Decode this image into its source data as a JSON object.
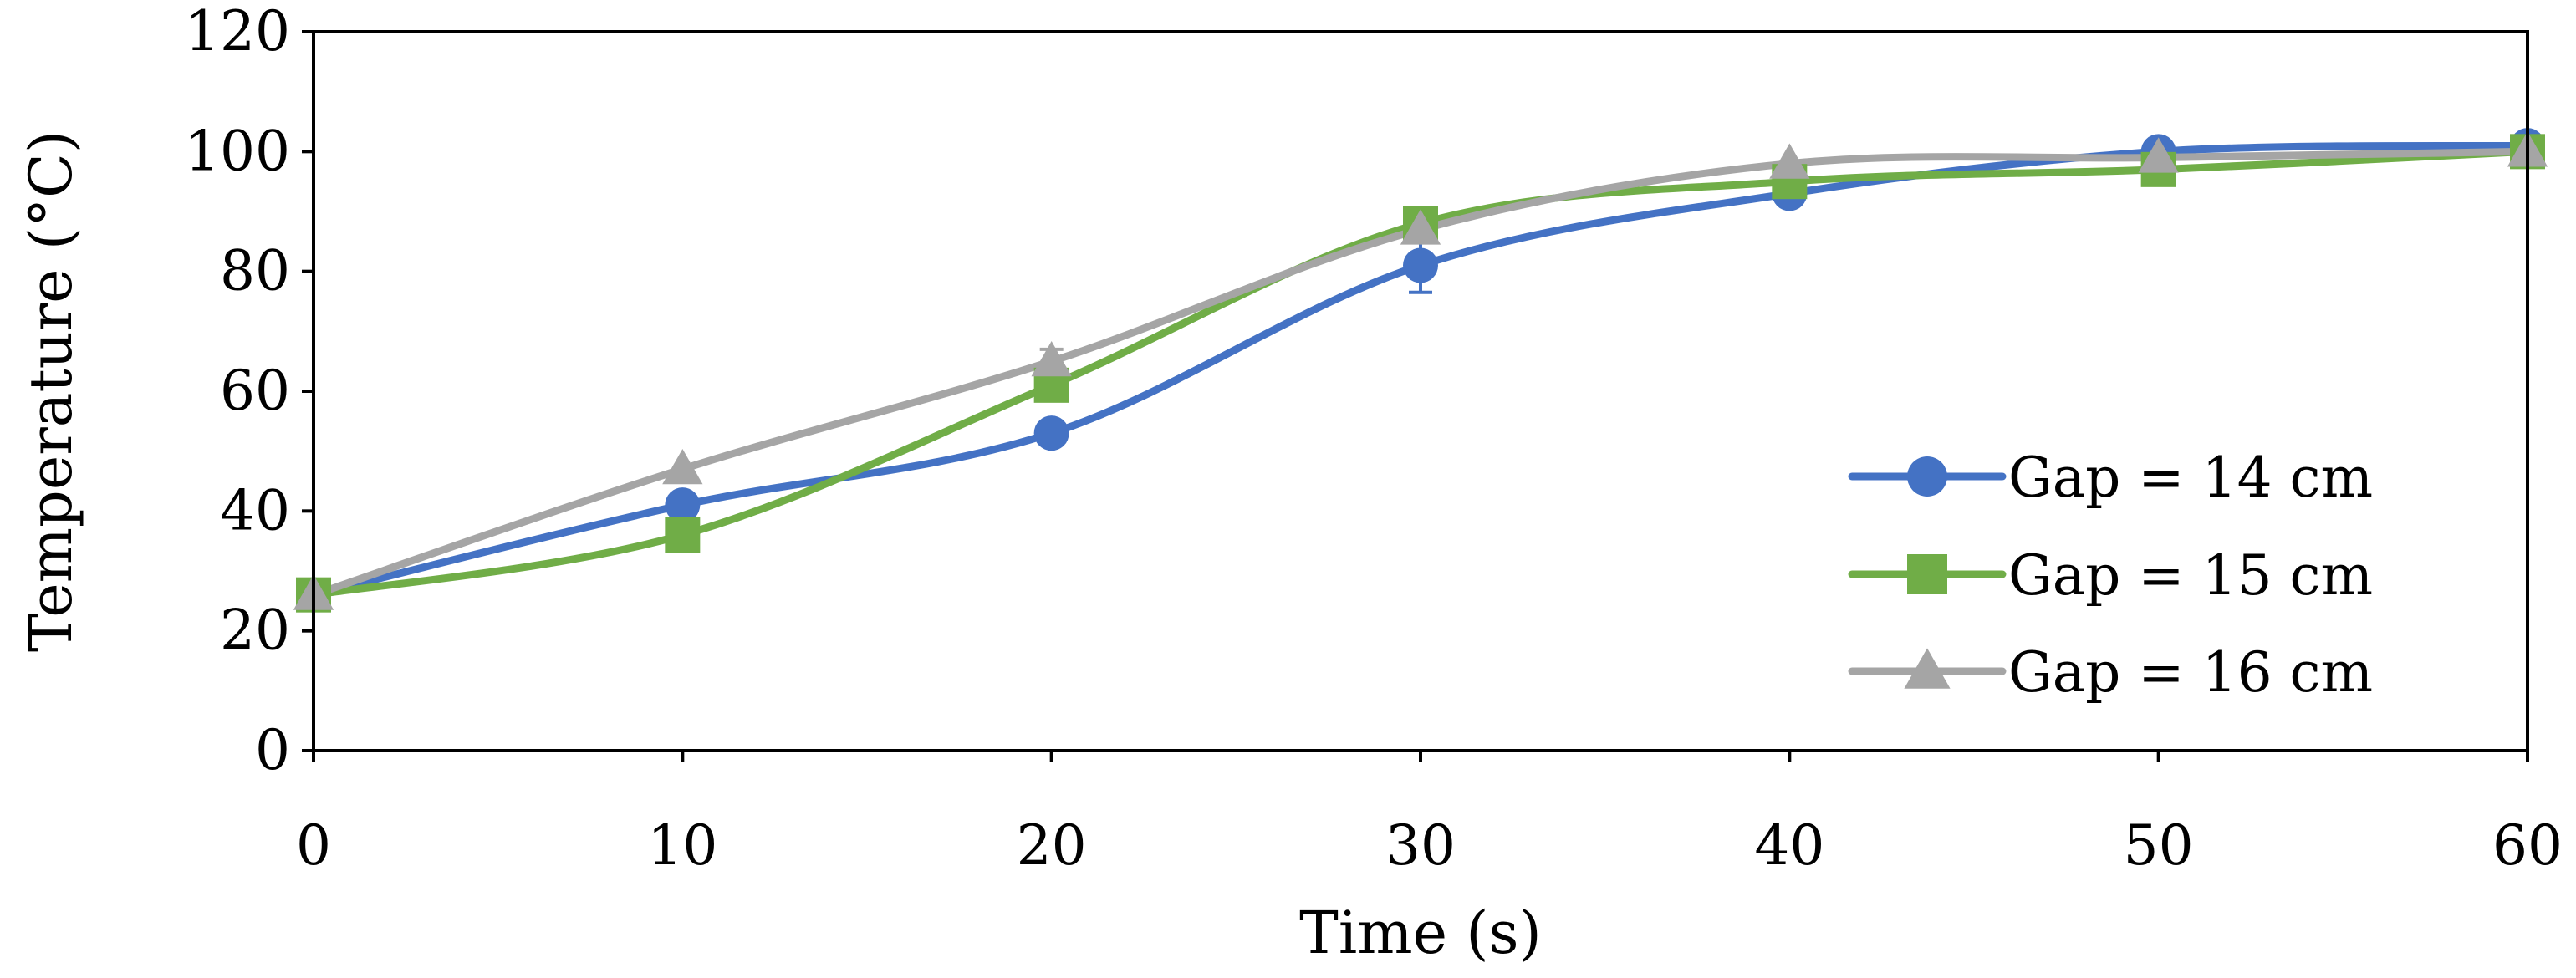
{
  "chart_data": {
    "type": "line",
    "title": "",
    "xlabel": "Time (s)",
    "ylabel": "Temperature (°C)",
    "x": [
      0,
      10,
      20,
      30,
      40,
      50,
      60
    ],
    "xlim": [
      0,
      60
    ],
    "ylim": [
      0,
      120
    ],
    "xticks": [
      "0",
      "10",
      "20",
      "30",
      "40",
      "50",
      "60"
    ],
    "yticks": [
      "0",
      "20",
      "40",
      "60",
      "80",
      "100",
      "120"
    ],
    "grid": false,
    "legend_position": "bottom-right",
    "series": [
      {
        "name": "Gap = 14 cm",
        "marker": "circle",
        "color": "#4472C4",
        "values": [
          26,
          41,
          53,
          81,
          93,
          100,
          101
        ],
        "errors": [
          0,
          0,
          1.5,
          4.5,
          0,
          0,
          0
        ]
      },
      {
        "name": "Gap = 15 cm",
        "marker": "square",
        "color": "#70AD47",
        "values": [
          26,
          36,
          61,
          88,
          95,
          97,
          100
        ],
        "errors": [
          0,
          0,
          0,
          0,
          0,
          0,
          0
        ]
      },
      {
        "name": "Gap = 16 cm",
        "marker": "triangle",
        "color": "#A5A5A5",
        "values": [
          26,
          47,
          65,
          87,
          98,
          99,
          100
        ],
        "errors": [
          0,
          0,
          2,
          0,
          0,
          0,
          0
        ]
      }
    ]
  }
}
